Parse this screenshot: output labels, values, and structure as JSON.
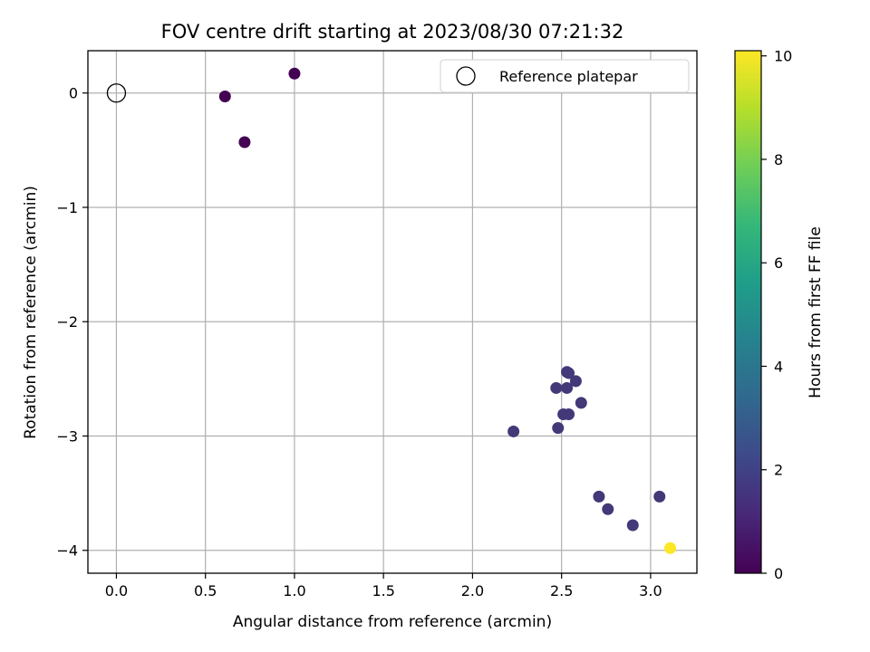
{
  "chart_data": {
    "type": "scatter",
    "title": "FOV centre drift starting at 2023/08/30 07:21:32",
    "xlabel": "Angular distance from reference (arcmin)",
    "ylabel": "Rotation from reference (arcmin)",
    "xlim": [
      -0.16,
      3.26
    ],
    "ylim": [
      -4.2,
      0.37
    ],
    "xticks": [
      0.0,
      0.5,
      1.0,
      1.5,
      2.0,
      2.5,
      3.0
    ],
    "xtick_labels": [
      "0.0",
      "0.5",
      "1.0",
      "1.5",
      "2.0",
      "2.5",
      "3.0"
    ],
    "yticks": [
      0,
      -1,
      -2,
      -3,
      -4
    ],
    "ytick_labels": [
      "0",
      "−1",
      "−2",
      "−3",
      "−4"
    ],
    "grid": true,
    "legend": {
      "position": "top-right",
      "entries": [
        "Reference platepar"
      ]
    },
    "reference_point": {
      "x": 0.0,
      "y": 0.0,
      "label": "Reference platepar"
    },
    "colorbar": {
      "label": "Hours from first FF file",
      "range": [
        0,
        10.1
      ],
      "ticks": [
        0,
        2,
        4,
        6,
        8,
        10
      ],
      "tick_labels": [
        "0",
        "2",
        "4",
        "6",
        "8",
        "10"
      ],
      "colormap": "viridis",
      "stops": [
        "#440154",
        "#482878",
        "#3e4989",
        "#31688e",
        "#26828e",
        "#1f9e89",
        "#35b779",
        "#6ece58",
        "#b5de2b",
        "#fde725"
      ]
    },
    "points": [
      {
        "x": 0.61,
        "y": -0.03,
        "color": "#440154"
      },
      {
        "x": 0.72,
        "y": -0.43,
        "color": "#440154"
      },
      {
        "x": 1.0,
        "y": 0.17,
        "color": "#440154"
      },
      {
        "x": 2.23,
        "y": -2.96,
        "color": "#433878"
      },
      {
        "x": 2.47,
        "y": -2.58,
        "color": "#433878"
      },
      {
        "x": 2.48,
        "y": -2.93,
        "color": "#433878"
      },
      {
        "x": 2.51,
        "y": -2.81,
        "color": "#433878"
      },
      {
        "x": 2.53,
        "y": -2.58,
        "color": "#433878"
      },
      {
        "x": 2.53,
        "y": -2.44,
        "color": "#433878"
      },
      {
        "x": 2.54,
        "y": -2.45,
        "color": "#433878"
      },
      {
        "x": 2.54,
        "y": -2.81,
        "color": "#433878"
      },
      {
        "x": 2.58,
        "y": -2.52,
        "color": "#433878"
      },
      {
        "x": 2.61,
        "y": -2.71,
        "color": "#433878"
      },
      {
        "x": 2.71,
        "y": -3.53,
        "color": "#433878"
      },
      {
        "x": 2.76,
        "y": -3.64,
        "color": "#433878"
      },
      {
        "x": 2.9,
        "y": -3.78,
        "color": "#433878"
      },
      {
        "x": 3.05,
        "y": -3.53,
        "color": "#433878"
      },
      {
        "x": 3.11,
        "y": -3.98,
        "color": "#fde725"
      }
    ]
  }
}
